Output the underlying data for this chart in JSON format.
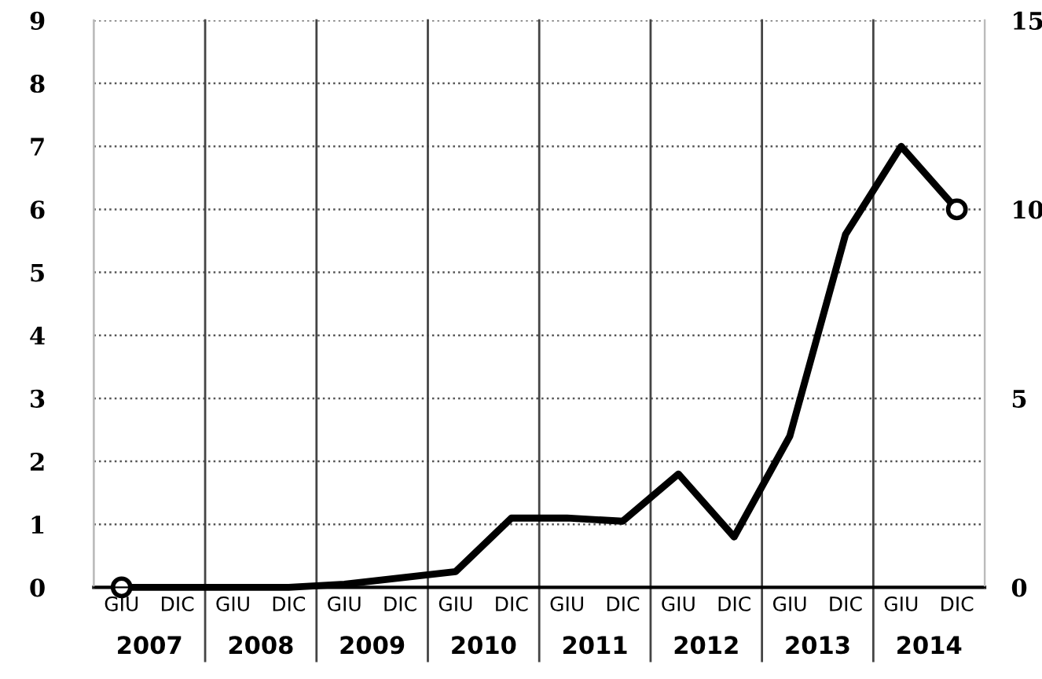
{
  "chart_data": {
    "type": "line",
    "categories": [
      "GIU",
      "DIC",
      "GIU",
      "DIC",
      "GIU",
      "DIC",
      "GIU",
      "DIC",
      "GIU",
      "DIC",
      "GIU",
      "DIC",
      "GIU",
      "DIC",
      "GIU",
      "DIC"
    ],
    "series": [
      {
        "color": "#000000",
        "values": [
          0,
          0,
          0,
          0,
          0.05,
          0.15,
          0.25,
          1.1,
          1.1,
          1.05,
          1.8,
          0.8,
          2.4,
          5.6,
          7.0,
          6.0
        ]
      }
    ],
    "annotations": [
      "2007",
      "2008",
      "2009",
      "2010",
      "2011",
      "2012",
      "2013",
      "2014"
    ],
    "ylim": [
      0,
      9
    ],
    "yticks": [
      0,
      1,
      2,
      3,
      4,
      5,
      6,
      7,
      8,
      9
    ],
    "y2lim": [
      0,
      15
    ],
    "y2ticks": [
      0,
      5,
      10,
      15
    ],
    "grid": "y",
    "marker": "none",
    "line_style": "solid"
  }
}
